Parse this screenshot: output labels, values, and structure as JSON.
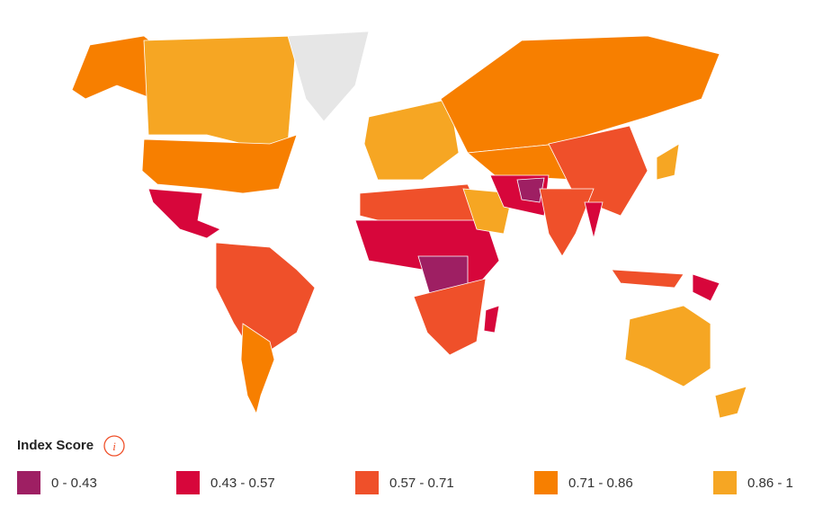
{
  "legend": {
    "title": "Index Score",
    "info_icon": "i",
    "items": [
      {
        "label": "0 - 0.43",
        "color": "#9e1f63"
      },
      {
        "label": "0.43 - 0.57",
        "color": "#d7063b"
      },
      {
        "label": "0.57 - 0.71",
        "color": "#ef502a"
      },
      {
        "label": "0.71 - 0.86",
        "color": "#f77f00"
      },
      {
        "label": "0.86 - 1",
        "color": "#f6a623"
      }
    ]
  }
}
